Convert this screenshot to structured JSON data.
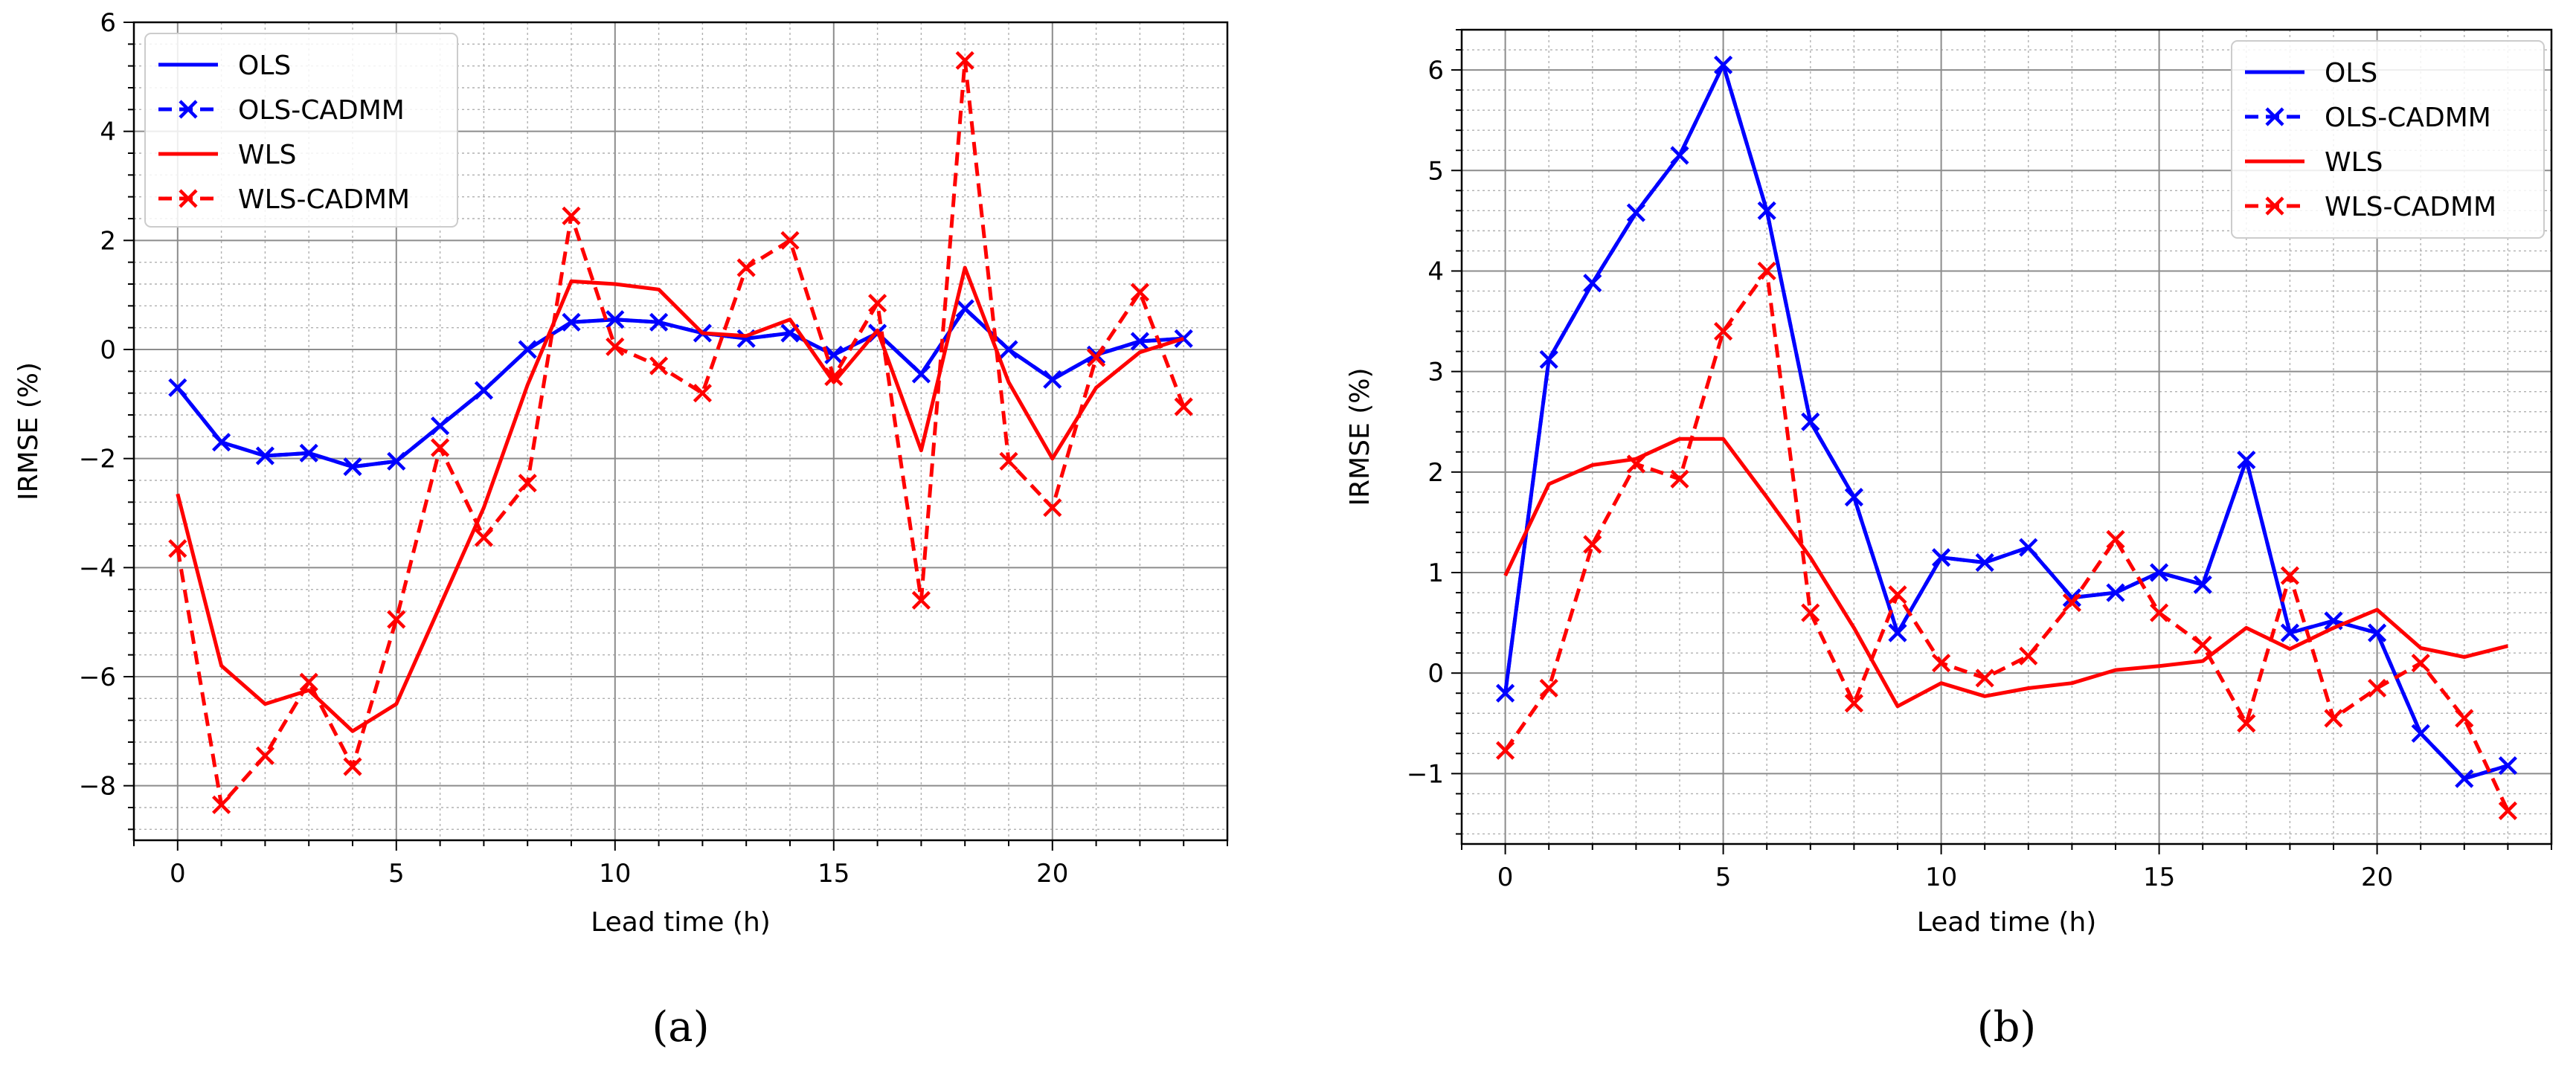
{
  "chart_data": [
    {
      "type": "line",
      "panel_label": "(a)",
      "title": "",
      "xlabel": "Lead time (h)",
      "ylabel": "IRMSE (%)",
      "xlim": [
        -1,
        24
      ],
      "ylim": [
        -9,
        6
      ],
      "xticks": [
        0,
        5,
        10,
        15,
        20
      ],
      "yticks": [
        -8,
        -6,
        -4,
        -2,
        0,
        2,
        4,
        6
      ],
      "grid": true,
      "minor_grid": true,
      "legend_position": "top-left",
      "x": [
        0,
        1,
        2,
        3,
        4,
        5,
        6,
        7,
        8,
        9,
        10,
        11,
        12,
        13,
        14,
        15,
        16,
        17,
        18,
        19,
        20,
        21,
        22,
        23
      ],
      "series": [
        {
          "name": "OLS",
          "color": "#0000ff",
          "style": "solid",
          "marker": "none",
          "values": [
            -0.7,
            -1.7,
            -1.95,
            -1.9,
            -2.15,
            -2.05,
            -1.4,
            -0.75,
            0.0,
            0.5,
            0.55,
            0.5,
            0.3,
            0.2,
            0.3,
            -0.1,
            0.3,
            -0.45,
            0.75,
            0.0,
            -0.55,
            -0.1,
            0.15,
            0.2
          ]
        },
        {
          "name": "OLS-CADMM",
          "color": "#0000ff",
          "style": "dashed",
          "marker": "x",
          "values": [
            -0.7,
            -1.7,
            -1.95,
            -1.9,
            -2.15,
            -2.05,
            -1.4,
            -0.75,
            0.0,
            0.5,
            0.55,
            0.5,
            0.3,
            0.2,
            0.3,
            -0.1,
            0.3,
            -0.45,
            0.75,
            0.0,
            -0.55,
            -0.1,
            0.15,
            0.2
          ]
        },
        {
          "name": "WLS",
          "color": "#ff0000",
          "style": "solid",
          "marker": "none",
          "values": [
            -2.65,
            -5.8,
            -6.5,
            -6.25,
            -7.0,
            -6.5,
            -4.7,
            -2.9,
            -0.65,
            1.25,
            1.2,
            1.1,
            0.3,
            0.25,
            0.55,
            -0.6,
            0.35,
            -1.85,
            1.5,
            -0.6,
            -2.0,
            -0.7,
            -0.05,
            0.2
          ]
        },
        {
          "name": "WLS-CADMM",
          "color": "#ff0000",
          "style": "dashed",
          "marker": "x",
          "values": [
            -3.65,
            -8.35,
            -7.45,
            -6.1,
            -7.65,
            -4.95,
            -1.8,
            -3.45,
            -2.45,
            2.45,
            0.05,
            -0.3,
            -0.8,
            1.5,
            2.0,
            -0.5,
            0.85,
            -4.6,
            5.3,
            -2.05,
            -2.9,
            -0.15,
            1.05,
            -1.05
          ]
        }
      ]
    },
    {
      "type": "line",
      "panel_label": "(b)",
      "title": "",
      "xlabel": "Lead time (h)",
      "ylabel": "IRMSE (%)",
      "xlim": [
        -1,
        24
      ],
      "ylim": [
        -1.7,
        6.4
      ],
      "xticks": [
        0,
        5,
        10,
        15,
        20
      ],
      "yticks": [
        -1,
        0,
        1,
        2,
        3,
        4,
        5,
        6
      ],
      "grid": true,
      "minor_grid": true,
      "legend_position": "top-right",
      "x": [
        0,
        1,
        2,
        3,
        4,
        5,
        6,
        7,
        8,
        9,
        10,
        11,
        12,
        13,
        14,
        15,
        16,
        17,
        18,
        19,
        20,
        21,
        22,
        23
      ],
      "series": [
        {
          "name": "OLS",
          "color": "#0000ff",
          "style": "solid",
          "marker": "none",
          "values": [
            -0.2,
            3.12,
            3.88,
            4.58,
            5.15,
            6.05,
            4.6,
            2.5,
            1.75,
            0.4,
            1.15,
            1.1,
            1.25,
            0.75,
            0.8,
            1.0,
            0.88,
            2.12,
            0.4,
            0.52,
            0.4,
            -0.6,
            -1.05,
            -0.92
          ]
        },
        {
          "name": "OLS-CADMM",
          "color": "#0000ff",
          "style": "dashed",
          "marker": "x",
          "values": [
            -0.2,
            3.12,
            3.88,
            4.58,
            5.15,
            6.05,
            4.6,
            2.5,
            1.75,
            0.4,
            1.15,
            1.1,
            1.25,
            0.75,
            0.8,
            1.0,
            0.88,
            2.12,
            0.4,
            0.52,
            0.4,
            -0.6,
            -1.05,
            -0.92
          ]
        },
        {
          "name": "WLS",
          "color": "#ff0000",
          "style": "solid",
          "marker": "none",
          "values": [
            0.97,
            1.88,
            2.07,
            2.13,
            2.33,
            2.33,
            1.75,
            1.15,
            0.45,
            -0.33,
            -0.1,
            -0.23,
            -0.15,
            -0.1,
            0.03,
            0.07,
            0.12,
            0.45,
            0.24,
            0.45,
            0.63,
            0.25,
            0.16,
            0.27
          ]
        },
        {
          "name": "WLS-CADMM",
          "color": "#ff0000",
          "style": "dashed",
          "marker": "x",
          "values": [
            -0.77,
            -0.15,
            1.28,
            2.08,
            1.93,
            3.4,
            4.0,
            0.6,
            -0.3,
            0.78,
            0.1,
            -0.05,
            0.17,
            0.7,
            1.33,
            0.6,
            0.28,
            -0.5,
            0.97,
            -0.45,
            -0.15,
            0.1,
            -0.45,
            -1.37
          ]
        }
      ]
    }
  ]
}
